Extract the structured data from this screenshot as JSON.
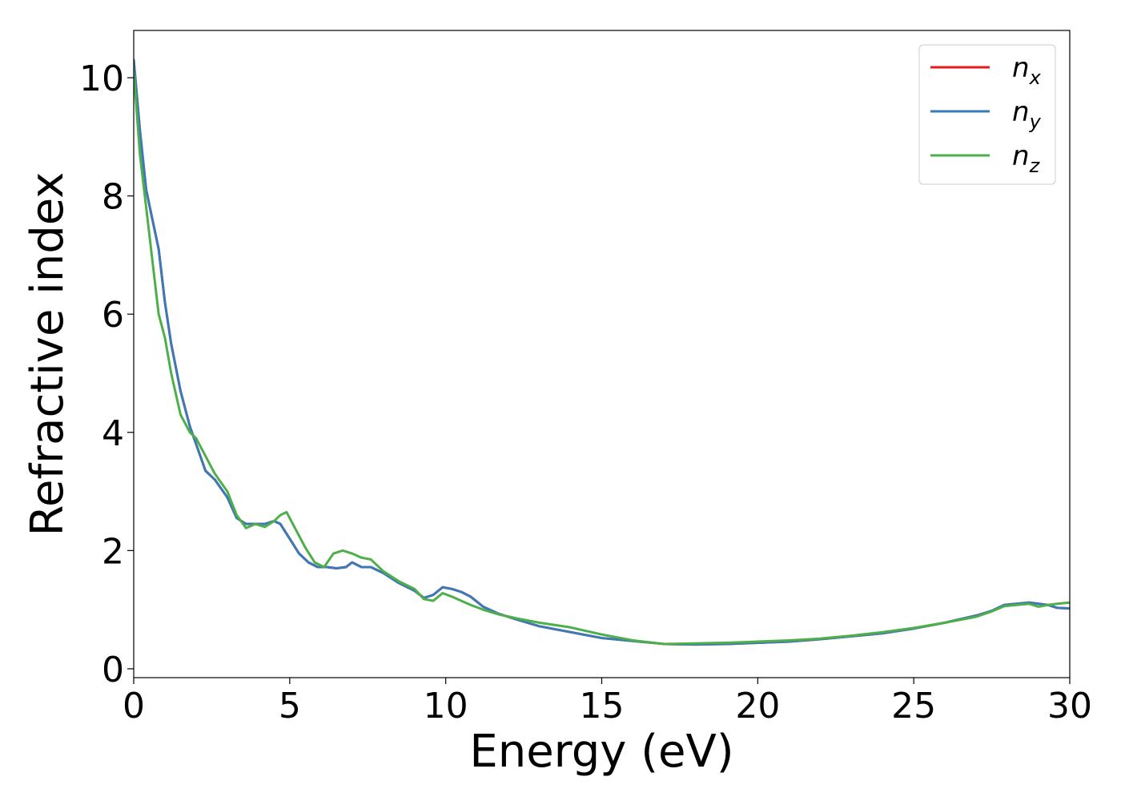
{
  "chart_data": {
    "type": "line",
    "title": "",
    "xlabel": "Energy (eV)",
    "ylabel": "Refractive index",
    "xlim": [
      0,
      30
    ],
    "ylim": [
      -0.15,
      10.8
    ],
    "xticks": [
      0,
      5,
      10,
      15,
      20,
      25,
      30
    ],
    "yticks": [
      0,
      2,
      4,
      6,
      8,
      10
    ],
    "grid": false,
    "legend_position": "top-right",
    "series": [
      {
        "name": "n",
        "sub": "x",
        "color": "#e41a1c",
        "x": [
          0,
          0.2,
          0.4,
          0.6,
          0.8,
          1.0,
          1.2,
          1.5,
          1.8,
          2.0,
          2.3,
          2.6,
          3.0,
          3.3,
          3.6,
          3.9,
          4.2,
          4.5,
          4.7,
          5.0,
          5.3,
          5.6,
          5.9,
          6.2,
          6.5,
          6.8,
          7.0,
          7.3,
          7.6,
          8.0,
          8.5,
          9.0,
          9.3,
          9.6,
          9.9,
          10.2,
          10.5,
          10.8,
          11.2,
          11.7,
          12.3,
          13.0,
          14.0,
          15.0,
          16.0,
          17.0,
          18.0,
          19.0,
          20.0,
          21.0,
          22.0,
          23.0,
          24.0,
          25.0,
          26.0,
          27.0,
          27.5,
          27.9,
          28.3,
          28.7,
          29.0,
          29.3,
          29.6,
          30.0
        ],
        "y": [
          10.3,
          9.1,
          8.1,
          7.6,
          7.1,
          6.2,
          5.5,
          4.7,
          4.1,
          3.8,
          3.35,
          3.2,
          2.9,
          2.55,
          2.45,
          2.45,
          2.45,
          2.5,
          2.45,
          2.2,
          1.95,
          1.8,
          1.72,
          1.72,
          1.7,
          1.72,
          1.8,
          1.72,
          1.72,
          1.62,
          1.45,
          1.32,
          1.2,
          1.25,
          1.38,
          1.35,
          1.3,
          1.22,
          1.05,
          0.93,
          0.83,
          0.72,
          0.62,
          0.52,
          0.47,
          0.42,
          0.41,
          0.42,
          0.44,
          0.46,
          0.5,
          0.55,
          0.6,
          0.68,
          0.78,
          0.9,
          0.98,
          1.08,
          1.1,
          1.12,
          1.1,
          1.08,
          1.03,
          1.02
        ]
      },
      {
        "name": "n",
        "sub": "y",
        "color": "#3a7ab8",
        "x": [
          0,
          0.2,
          0.4,
          0.6,
          0.8,
          1.0,
          1.2,
          1.5,
          1.8,
          2.0,
          2.3,
          2.6,
          3.0,
          3.3,
          3.6,
          3.9,
          4.2,
          4.5,
          4.7,
          5.0,
          5.3,
          5.6,
          5.9,
          6.2,
          6.5,
          6.8,
          7.0,
          7.3,
          7.6,
          8.0,
          8.5,
          9.0,
          9.3,
          9.6,
          9.9,
          10.2,
          10.5,
          10.8,
          11.2,
          11.7,
          12.3,
          13.0,
          14.0,
          15.0,
          16.0,
          17.0,
          18.0,
          19.0,
          20.0,
          21.0,
          22.0,
          23.0,
          24.0,
          25.0,
          26.0,
          27.0,
          27.5,
          27.9,
          28.3,
          28.7,
          29.0,
          29.3,
          29.6,
          30.0
        ],
        "y": [
          10.3,
          9.1,
          8.1,
          7.6,
          7.1,
          6.2,
          5.5,
          4.7,
          4.1,
          3.8,
          3.35,
          3.2,
          2.9,
          2.55,
          2.45,
          2.45,
          2.45,
          2.5,
          2.45,
          2.2,
          1.95,
          1.8,
          1.72,
          1.72,
          1.7,
          1.72,
          1.8,
          1.72,
          1.72,
          1.62,
          1.45,
          1.32,
          1.2,
          1.25,
          1.38,
          1.35,
          1.3,
          1.22,
          1.05,
          0.93,
          0.83,
          0.72,
          0.62,
          0.52,
          0.47,
          0.42,
          0.41,
          0.42,
          0.44,
          0.46,
          0.5,
          0.55,
          0.6,
          0.68,
          0.78,
          0.9,
          0.98,
          1.08,
          1.1,
          1.12,
          1.1,
          1.08,
          1.03,
          1.02
        ]
      },
      {
        "name": "n",
        "sub": "z",
        "color": "#4daf4a",
        "x": [
          0,
          0.2,
          0.4,
          0.6,
          0.8,
          1.0,
          1.2,
          1.5,
          1.8,
          2.0,
          2.3,
          2.6,
          3.0,
          3.3,
          3.6,
          3.9,
          4.2,
          4.5,
          4.7,
          4.9,
          5.2,
          5.5,
          5.8,
          6.1,
          6.4,
          6.7,
          7.0,
          7.3,
          7.6,
          8.0,
          8.5,
          9.0,
          9.3,
          9.6,
          9.9,
          10.2,
          10.5,
          10.8,
          11.2,
          11.7,
          12.3,
          13.0,
          14.0,
          15.0,
          16.0,
          17.0,
          18.0,
          19.0,
          20.0,
          21.0,
          22.0,
          23.0,
          24.0,
          25.0,
          26.0,
          27.0,
          27.5,
          27.9,
          28.3,
          28.7,
          29.0,
          29.3,
          29.6,
          30.0
        ],
        "y": [
          10.1,
          8.7,
          7.8,
          6.9,
          6.0,
          5.6,
          5.0,
          4.3,
          4.0,
          3.9,
          3.6,
          3.3,
          3.0,
          2.6,
          2.38,
          2.45,
          2.4,
          2.5,
          2.6,
          2.65,
          2.35,
          2.05,
          1.8,
          1.72,
          1.95,
          2.0,
          1.95,
          1.88,
          1.85,
          1.65,
          1.48,
          1.35,
          1.18,
          1.15,
          1.28,
          1.22,
          1.15,
          1.08,
          1.0,
          0.92,
          0.85,
          0.78,
          0.7,
          0.58,
          0.48,
          0.42,
          0.43,
          0.44,
          0.46,
          0.48,
          0.51,
          0.56,
          0.62,
          0.69,
          0.78,
          0.88,
          0.97,
          1.06,
          1.08,
          1.1,
          1.05,
          1.08,
          1.1,
          1.12
        ]
      }
    ]
  }
}
